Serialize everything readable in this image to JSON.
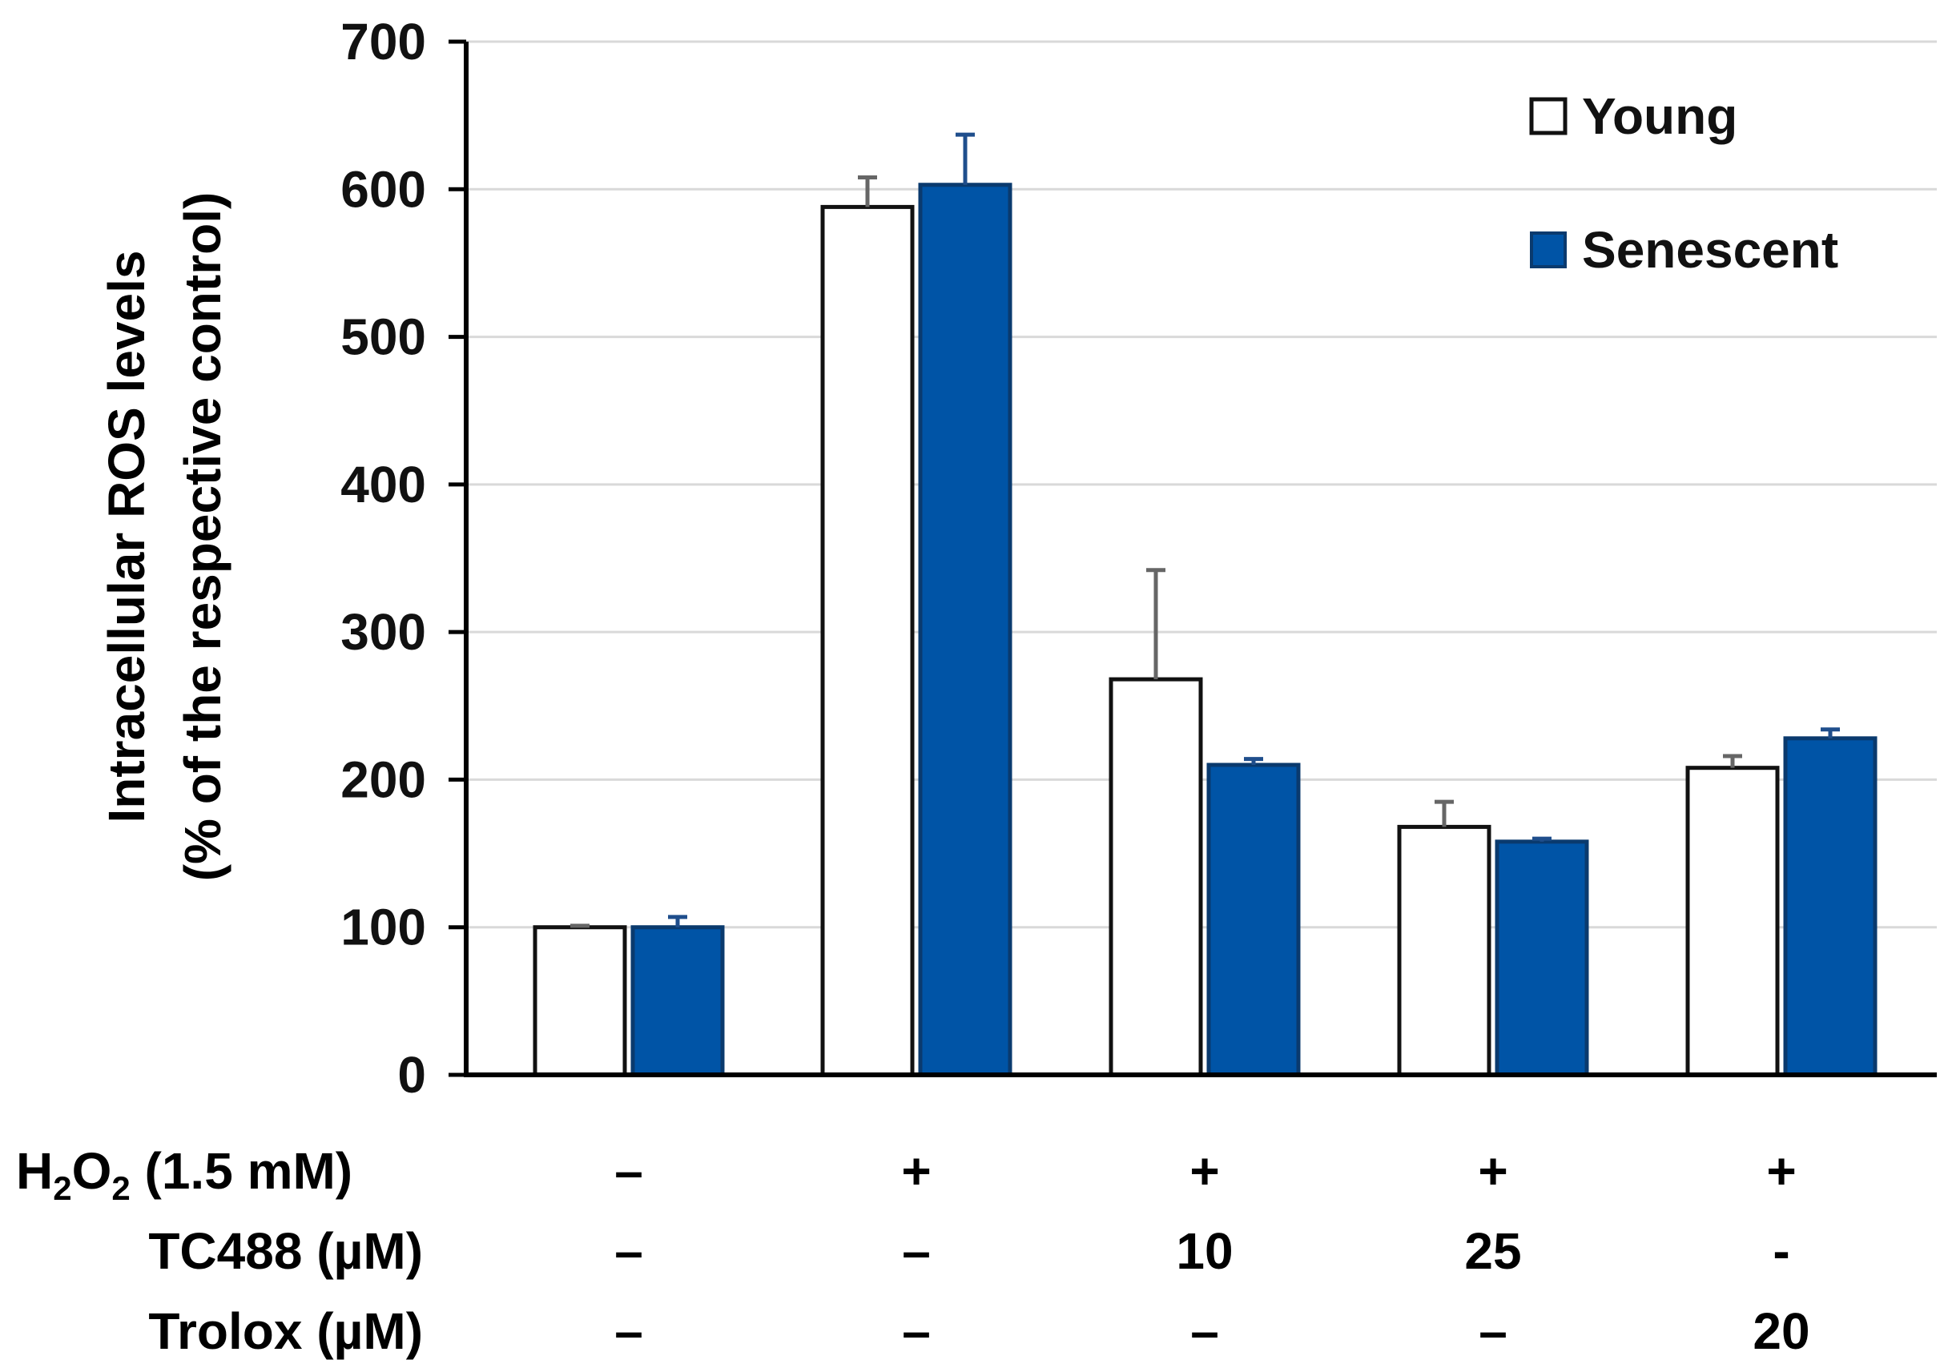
{
  "chart_data": {
    "type": "bar",
    "title": "",
    "ylabel_line1": "Intracellular ROS levels",
    "ylabel_line2": "(% of the respective control)",
    "xlabel": "",
    "ylim": [
      0,
      700
    ],
    "yticks": [
      0,
      100,
      200,
      300,
      400,
      500,
      600,
      700
    ],
    "grid": true,
    "legend_position": "top-right",
    "group_count": 5,
    "series": [
      {
        "name": "Young",
        "fill": "#ffffff",
        "stroke": "#111111",
        "error_color": "#666666",
        "values": [
          100,
          588,
          268,
          168,
          208
        ],
        "errors": [
          1,
          20,
          74,
          17,
          8
        ]
      },
      {
        "name": "Senescent",
        "fill": "#0054a6",
        "stroke": "#0a3a6e",
        "error_color": "#1f4e8c",
        "values": [
          100,
          603,
          210,
          158,
          228
        ],
        "errors": [
          7,
          34,
          4,
          2,
          6
        ]
      }
    ],
    "conditions": [
      {
        "label_main": "H",
        "label_sub1": "2",
        "label_mid": "O",
        "label_sub2": "2",
        "label_rest": " (1.5 mM)",
        "values": [
          "–",
          "+",
          "+",
          "+",
          "+"
        ]
      },
      {
        "label": "TC488 (µM)",
        "values": [
          "–",
          "–",
          "10",
          "25",
          "-"
        ]
      },
      {
        "label": "Trolox (µM)",
        "values": [
          "–",
          "–",
          "–",
          "–",
          "20"
        ]
      }
    ]
  }
}
